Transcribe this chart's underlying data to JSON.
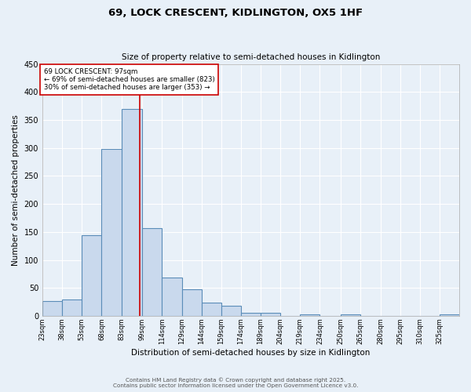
{
  "title_line1": "69, LOCK CRESCENT, KIDLINGTON, OX5 1HF",
  "title_line2": "Size of property relative to semi-detached houses in Kidlington",
  "xlabel": "Distribution of semi-detached houses by size in Kidlington",
  "ylabel": "Number of semi-detached properties",
  "footer_line1": "Contains HM Land Registry data © Crown copyright and database right 2025.",
  "footer_line2": "Contains public sector information licensed under the Open Government Licence v3.0.",
  "bin_labels": [
    "23sqm",
    "38sqm",
    "53sqm",
    "68sqm",
    "83sqm",
    "99sqm",
    "114sqm",
    "129sqm",
    "144sqm",
    "159sqm",
    "174sqm",
    "189sqm",
    "204sqm",
    "219sqm",
    "234sqm",
    "250sqm",
    "265sqm",
    "280sqm",
    "295sqm",
    "310sqm",
    "325sqm"
  ],
  "bar_values": [
    27,
    29,
    144,
    298,
    370,
    157,
    69,
    48,
    24,
    18,
    5,
    6,
    0,
    3,
    0,
    3,
    0,
    0,
    0,
    0,
    3
  ],
  "bin_edges": [
    23,
    38,
    53,
    68,
    83,
    99,
    114,
    129,
    144,
    159,
    174,
    189,
    204,
    219,
    234,
    250,
    265,
    280,
    295,
    310,
    325,
    340
  ],
  "bar_facecolor": "#c9d9ed",
  "bar_edgecolor": "#5b8db8",
  "property_value": 97,
  "vline_color": "#cc0000",
  "annotation_text_line1": "69 LOCK CRESCENT: 97sqm",
  "annotation_text_line2": "← 69% of semi-detached houses are smaller (823)",
  "annotation_text_line3": "30% of semi-detached houses are larger (353) →",
  "annotation_box_edgecolor": "#cc0000",
  "annotation_box_facecolor": "#ffffff",
  "ylim": [
    0,
    450
  ],
  "background_color": "#e8f0f8",
  "grid_color": "#ffffff"
}
